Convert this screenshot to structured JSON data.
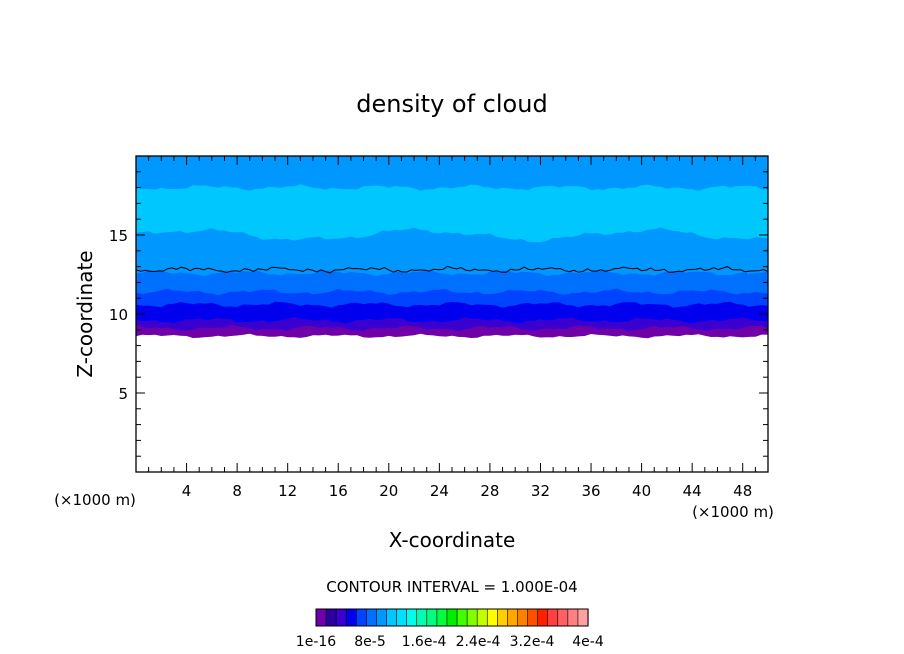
{
  "chart_data": {
    "type": "heatmap",
    "title": "density of cloud",
    "xlabel": "X-coordinate",
    "ylabel": "Z-coordinate",
    "x_unit_left": "(×1000 m)",
    "x_unit_right": "(×1000 m)",
    "xlim": [
      0,
      50
    ],
    "ylim": [
      0,
      20
    ],
    "x_ticks": [
      4,
      8,
      12,
      16,
      20,
      24,
      28,
      32,
      36,
      40,
      44,
      48
    ],
    "y_ticks": [
      5,
      10,
      15
    ],
    "contour_interval_text": "CONTOUR INTERVAL = 1.000E-04",
    "colorbar": {
      "colors": [
        "#7000a8",
        "#2c00a0",
        "#3a00d0",
        "#0000ee",
        "#0044ff",
        "#0070ff",
        "#0098ff",
        "#00c8ff",
        "#00e0ff",
        "#00ffe8",
        "#00ffb0",
        "#00ff80",
        "#00ff40",
        "#00ee00",
        "#40ff00",
        "#80ff00",
        "#c0ff00",
        "#ffff00",
        "#ffd000",
        "#ffa800",
        "#ff8000",
        "#ff5000",
        "#ff2000",
        "#ff4040",
        "#ff6060",
        "#ff8080",
        "#ffa0a0"
      ],
      "labels": [
        "1e-16",
        "8e-5",
        "1.6e-4",
        "2.4e-4",
        "3.2e-4",
        "4e-4"
      ]
    },
    "bands": [
      {
        "color": "#7000a8",
        "lower_z": 8.6
      },
      {
        "color": "#3a00d0",
        "lower_z": 9.1
      },
      {
        "color": "#0000ee",
        "lower_z": 9.6
      },
      {
        "color": "#0044ff",
        "lower_z": 10.6
      },
      {
        "color": "#0070ff",
        "lower_z": 11.4
      },
      {
        "color": "#0098ff",
        "lower_z": 12.6
      },
      {
        "color": "#00c8ff",
        "lower_z": 15.0
      },
      {
        "color": "#0098ff",
        "lower_z": 18.0
      }
    ],
    "contour_line_z": 12.8
  }
}
